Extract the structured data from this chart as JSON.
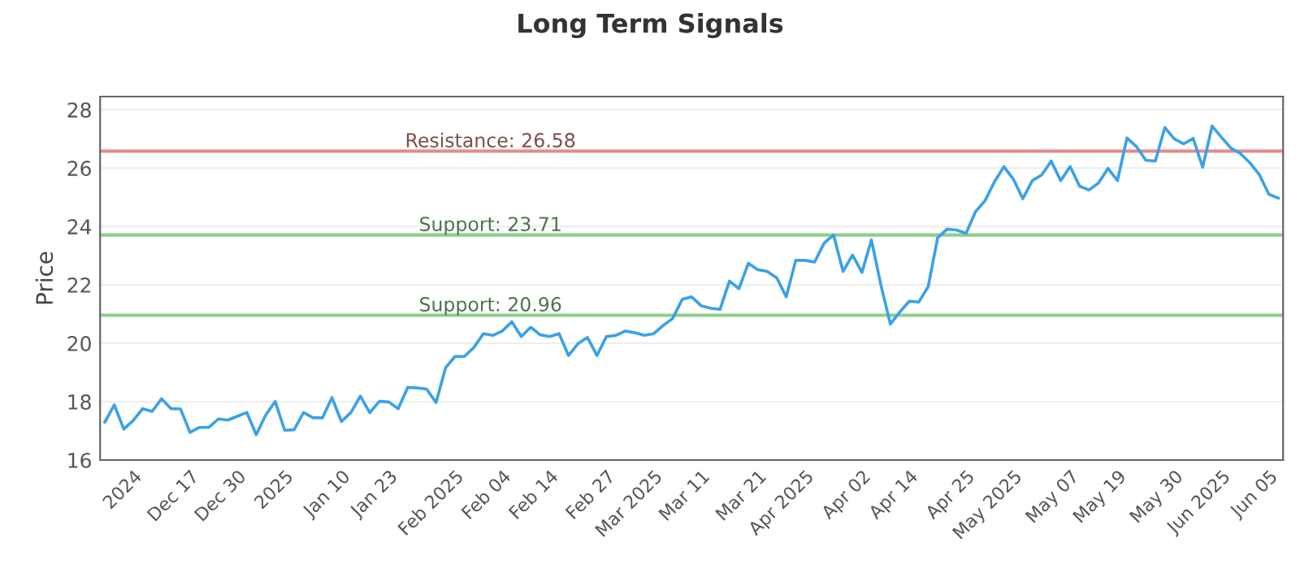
{
  "chart_data": {
    "type": "line",
    "title": "Long Term Signals",
    "ylabel": "Price",
    "categories": [
      null,
      null,
      null,
      "2024",
      null,
      null,
      null,
      null,
      null,
      "Dec 17",
      null,
      null,
      null,
      null,
      "Dec 30",
      null,
      null,
      null,
      null,
      "2025",
      null,
      null,
      null,
      null,
      null,
      "Jan 10",
      null,
      null,
      null,
      null,
      "Jan 23",
      null,
      null,
      null,
      null,
      null,
      null,
      "Feb 2025",
      null,
      null,
      null,
      null,
      "Feb 04",
      null,
      null,
      null,
      null,
      "Feb 14",
      null,
      null,
      null,
      null,
      null,
      "Feb 27",
      null,
      null,
      null,
      null,
      "Mar 2025",
      null,
      null,
      null,
      null,
      "Mar 11",
      null,
      null,
      null,
      null,
      null,
      "Mar 21",
      null,
      null,
      null,
      null,
      "Apr 2025",
      null,
      null,
      null,
      null,
      null,
      "Apr 02",
      null,
      null,
      null,
      null,
      "Apr 14",
      null,
      null,
      null,
      null,
      null,
      "Apr 25",
      null,
      null,
      null,
      null,
      "May 2025",
      null,
      null,
      null,
      null,
      null,
      "May 07",
      null,
      null,
      null,
      null,
      "May 19",
      null,
      null,
      null,
      null,
      null,
      "May 30",
      null,
      null,
      null,
      null,
      "Jun 2025",
      null,
      null,
      null,
      null,
      "Jun 05",
      null
    ],
    "series": [
      {
        "color": "#3ba1e6",
        "values": [
          17.3,
          17.89,
          17.06,
          17.36,
          17.76,
          17.67,
          18.1,
          17.76,
          17.75,
          16.95,
          17.12,
          17.12,
          17.41,
          17.37,
          17.5,
          17.63,
          16.87,
          17.54,
          18.01,
          17.02,
          17.04,
          17.63,
          17.45,
          17.45,
          18.14,
          17.32,
          17.63,
          18.19,
          17.62,
          18.01,
          17.99,
          17.76,
          18.49,
          18.47,
          18.43,
          17.97,
          19.16,
          19.55,
          19.55,
          19.86,
          20.33,
          20.27,
          20.42,
          20.74,
          20.23,
          20.55,
          20.29,
          20.23,
          20.33,
          19.58,
          19.99,
          20.2,
          19.58,
          20.23,
          20.27,
          20.42,
          20.36,
          20.27,
          20.33,
          20.61,
          20.85,
          21.5,
          21.59,
          21.29,
          21.2,
          21.16,
          22.13,
          21.87,
          22.74,
          22.52,
          22.46,
          22.24,
          21.59,
          22.84,
          22.84,
          22.78,
          23.43,
          23.71,
          22.46,
          23.02,
          22.43,
          23.54,
          22.0,
          20.66,
          21.07,
          21.44,
          21.41,
          21.94,
          23.62,
          23.91,
          23.88,
          23.76,
          24.51,
          24.88,
          25.53,
          26.05,
          25.62,
          24.95,
          25.57,
          25.77,
          26.24,
          25.57,
          26.05,
          25.38,
          25.25,
          25.49,
          25.99,
          25.57,
          27.03,
          26.74,
          26.27,
          26.24,
          27.39,
          27.0,
          26.83,
          27.02,
          26.03,
          27.44,
          27.05,
          26.68,
          26.5,
          26.18,
          25.77,
          25.1,
          24.97
        ]
      }
    ],
    "ylim": [
      16,
      28.45
    ],
    "yticks": [
      16,
      18,
      20,
      22,
      24,
      26,
      28
    ],
    "grid": "y",
    "ref_lines": [
      {
        "axis": "y",
        "value": 26.58,
        "label": "Resistance: 26.58",
        "color": "#e88a8a"
      },
      {
        "axis": "y",
        "value": 23.71,
        "label": "Support: 23.71",
        "color": "#8ccf8c"
      },
      {
        "axis": "y",
        "value": 20.96,
        "label": "Support: 20.96",
        "color": "#8ccf8c"
      }
    ]
  }
}
